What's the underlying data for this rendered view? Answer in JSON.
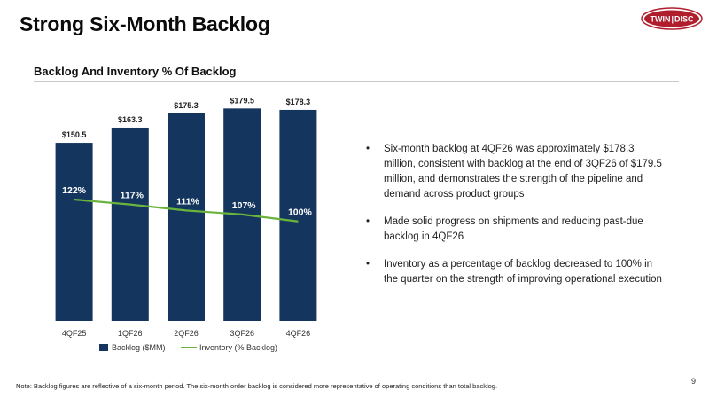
{
  "slide": {
    "title": "Strong Six-Month Backlog",
    "section_title": "Backlog And Inventory % Of Backlog",
    "page_number": "9",
    "footnote": "Note: Backlog figures are reflective of a six-month period. The six-month order backlog is considered more representative of operating conditions than total backlog."
  },
  "logo": {
    "text": "TWIN DISC",
    "left_text": "TWIN",
    "right_text": "DISC",
    "color": "#b01e2d"
  },
  "bullets": [
    {
      "text": "Six-month backlog at 4QF26 was approximately $178.3 million, consistent with backlog at the end of 3QF26 of $179.5 million, and demonstrates the strength of the pipeline and demand across product groups"
    },
    {
      "text": "Made solid progress on shipments and reducing past-due backlog in 4QF26"
    },
    {
      "text": "Inventory as a percentage of backlog decreased to 100% in the quarter on the strength of improving operational execution"
    }
  ],
  "chart_data": {
    "type": "bar",
    "title": "Backlog And Inventory % Of Backlog",
    "categories": [
      "4QF25",
      "1QF26",
      "2QF26",
      "3QF26",
      "4QF26"
    ],
    "series": [
      {
        "name": "Backlog ($MM)",
        "type": "bar",
        "values": [
          150.5,
          163.3,
          175.3,
          179.5,
          178.3
        ],
        "labels": [
          "$150.5",
          "$163.3",
          "$175.3",
          "$179.5",
          "$178.3"
        ],
        "color": "#14355e"
      },
      {
        "name": "Inventory (% Backlog)",
        "type": "line",
        "values": [
          122,
          117,
          111,
          107,
          100
        ],
        "labels": [
          "122%",
          "117%",
          "111%",
          "107%",
          "100%"
        ],
        "color": "#6ab43e"
      }
    ],
    "ylim": [
      0,
      185
    ],
    "line_ylim": [
      0,
      220
    ],
    "grid": false,
    "legend_position": "bottom"
  }
}
